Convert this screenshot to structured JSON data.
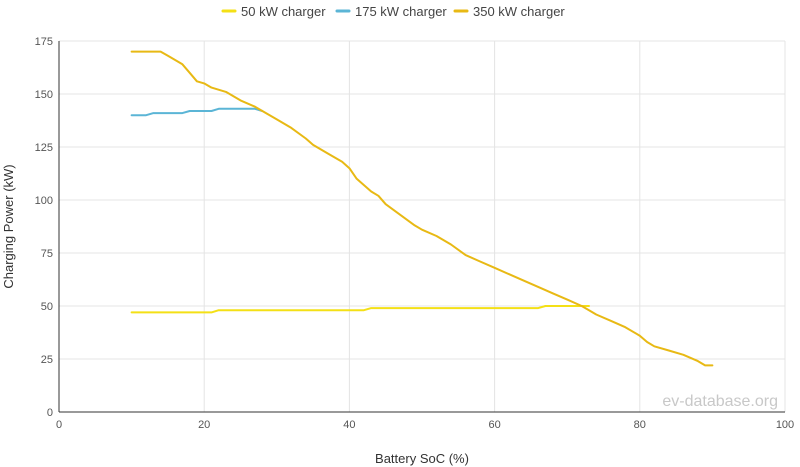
{
  "chart_data": {
    "type": "line",
    "xlabel": "Battery SoC (%)",
    "ylabel": "Charging Power (kW)",
    "xlim": [
      0,
      100
    ],
    "ylim": [
      0,
      175
    ],
    "xticks": [
      "0",
      "20",
      "40",
      "60",
      "80",
      "100"
    ],
    "yticks": [
      "0",
      "25",
      "50",
      "75",
      "100",
      "125",
      "150",
      "175"
    ],
    "grid": true,
    "legend_position": "top-center",
    "watermark": "ev-database.org",
    "series": [
      {
        "name": "50 kW charger",
        "color": "#f4e016",
        "points": [
          [
            10,
            47
          ],
          [
            15,
            47
          ],
          [
            20,
            47
          ],
          [
            21,
            47
          ],
          [
            22,
            48
          ],
          [
            30,
            48
          ],
          [
            40,
            48
          ],
          [
            42,
            48
          ],
          [
            43,
            49
          ],
          [
            50,
            49
          ],
          [
            60,
            49
          ],
          [
            66,
            49
          ],
          [
            67,
            50
          ],
          [
            72,
            50
          ],
          [
            73,
            50
          ]
        ]
      },
      {
        "name": "175 kW charger",
        "color": "#5bb5d6",
        "points": [
          [
            10,
            140
          ],
          [
            12,
            140
          ],
          [
            13,
            141
          ],
          [
            15,
            141
          ],
          [
            17,
            141
          ],
          [
            18,
            142
          ],
          [
            21,
            142
          ],
          [
            22,
            143
          ],
          [
            25,
            143
          ],
          [
            27,
            143
          ],
          [
            28,
            142
          ]
        ]
      },
      {
        "name": "350 kW charger",
        "color": "#e8b914",
        "points": [
          [
            10,
            170
          ],
          [
            14,
            170
          ],
          [
            15,
            168
          ],
          [
            17,
            164
          ],
          [
            18,
            160
          ],
          [
            19,
            156
          ],
          [
            20,
            155
          ],
          [
            21,
            153
          ],
          [
            23,
            151
          ],
          [
            25,
            147
          ],
          [
            27,
            144
          ],
          [
            30,
            138
          ],
          [
            32,
            134
          ],
          [
            34,
            129
          ],
          [
            35,
            126
          ],
          [
            37,
            122
          ],
          [
            39,
            118
          ],
          [
            40,
            115
          ],
          [
            41,
            110
          ],
          [
            43,
            104
          ],
          [
            44,
            102
          ],
          [
            45,
            98
          ],
          [
            47,
            93
          ],
          [
            49,
            88
          ],
          [
            50,
            86
          ],
          [
            52,
            83
          ],
          [
            54,
            79
          ],
          [
            56,
            74
          ],
          [
            58,
            71
          ],
          [
            60,
            68
          ],
          [
            62,
            65
          ],
          [
            64,
            62
          ],
          [
            66,
            59
          ],
          [
            68,
            56
          ],
          [
            70,
            53
          ],
          [
            72,
            50
          ],
          [
            73,
            48
          ],
          [
            74,
            46
          ],
          [
            76,
            43
          ],
          [
            78,
            40
          ],
          [
            80,
            36
          ],
          [
            81,
            33
          ],
          [
            82,
            31
          ],
          [
            84,
            29
          ],
          [
            86,
            27
          ],
          [
            88,
            24
          ],
          [
            89,
            22
          ],
          [
            90,
            22
          ]
        ]
      }
    ]
  }
}
